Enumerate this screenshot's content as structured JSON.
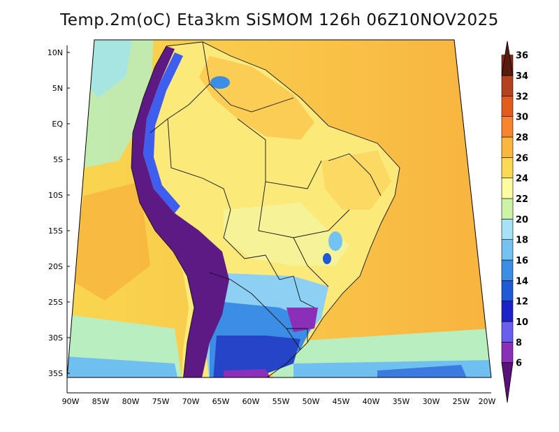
{
  "title": "Temp.2m(oC) Eta3km SiSMOM 126h 06Z10NOV2025",
  "lat_labels": [
    "10N",
    "5N",
    "EQ",
    "5S",
    "10S",
    "15S",
    "20S",
    "25S",
    "30S",
    "35S"
  ],
  "lon_labels": [
    "90W",
    "85W",
    "80W",
    "75W",
    "70W",
    "65W",
    "60W",
    "55W",
    "50W",
    "45W",
    "40W",
    "35W",
    "30W",
    "25W",
    "20W"
  ],
  "colorbar": {
    "labels": [
      "6",
      "8",
      "10",
      "12",
      "14",
      "16",
      "18",
      "20",
      "22",
      "24",
      "26",
      "28",
      "30",
      "32",
      "34",
      "36"
    ],
    "colors": [
      "#5a0f7a",
      "#8b2fb8",
      "#6a5ef0",
      "#1c22c8",
      "#1f5ad6",
      "#3b8de6",
      "#74c2f2",
      "#a6e1f5",
      "#cdf4a6",
      "#fbfca2",
      "#fbd954",
      "#fbb640",
      "#f6852e",
      "#e25c1c",
      "#b4421c",
      "#8a2c12",
      "#5a1a0c"
    ]
  },
  "palette": {
    "ocean": "#f9d14c",
    "ocean_warm": "#f8b33e",
    "land_warm": "#fbe97a",
    "land_hot": "#fcc84d",
    "andes": "#5d1a85",
    "cold_south": "#3366dd",
    "cool_south": "#8ed0f4"
  }
}
